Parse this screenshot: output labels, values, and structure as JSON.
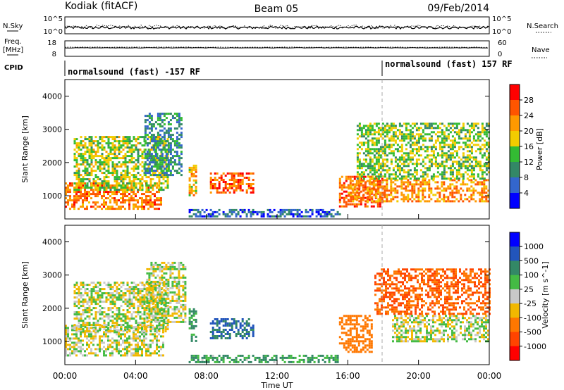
{
  "header": {
    "station": "Kodiak (fitACF)",
    "beam": "Beam 05",
    "date": "09/Feb/2014"
  },
  "status_panel": {
    "nsky_label": "N.Sky",
    "nsky_ticks": [
      "10^5",
      "10^0"
    ],
    "nsearch_label": "N.Search",
    "nsearch_ticks": [
      "10^5",
      "10^0"
    ],
    "freq_label_1": "Freq.",
    "freq_label_2": "[MHz]",
    "freq_ticks": [
      "18",
      "8"
    ],
    "nave_label": "Nave",
    "nave_ticks": [
      "60",
      "0"
    ],
    "cpid_label": "CPID",
    "cpid_segments": [
      {
        "text": "normalsound (fast) -157 RF",
        "start_hour": 0
      },
      {
        "text": "normalsound (fast) 157 RF",
        "start_hour": 18
      }
    ]
  },
  "chart_data": [
    {
      "type": "heatmap",
      "title": "",
      "xlabel": "Time UT",
      "ylabel": "Slant Range [km]",
      "x_ticks": [
        "00:00",
        "04:00",
        "08:00",
        "12:00",
        "16:00",
        "20:00",
        "00:00"
      ],
      "xlim_hours": [
        0,
        24
      ],
      "ylim": [
        300,
        4500
      ],
      "y_ticks": [
        1000,
        2000,
        3000,
        4000
      ],
      "colorbar": {
        "label": "Power [dB]",
        "ticks": [
          "28",
          "24",
          "20",
          "16",
          "12",
          "8",
          "4"
        ],
        "colors": [
          "#ff0000",
          "#ff5500",
          "#ff9900",
          "#f2cc00",
          "#33bb33",
          "#338866",
          "#3366cc",
          "#0000ff"
        ]
      },
      "echo_regions": [
        {
          "t0": 0.0,
          "t1": 5.4,
          "r0": 600,
          "r1": 1400,
          "level": 26
        },
        {
          "t0": 0.5,
          "t1": 5.8,
          "r0": 1200,
          "r1": 2800,
          "level": 18
        },
        {
          "t0": 4.5,
          "t1": 6.6,
          "r0": 1600,
          "r1": 3500,
          "level": 12
        },
        {
          "t0": 7.0,
          "t1": 7.4,
          "r0": 1000,
          "r1": 2000,
          "level": 22
        },
        {
          "t0": 7.0,
          "t1": 15.6,
          "r0": 350,
          "r1": 600,
          "level": 8
        },
        {
          "t0": 8.2,
          "t1": 10.6,
          "r0": 1100,
          "r1": 1700,
          "level": 28
        },
        {
          "t0": 15.5,
          "t1": 18.0,
          "r0": 700,
          "r1": 1600,
          "level": 28
        },
        {
          "t0": 16.0,
          "t1": 24.0,
          "r0": 800,
          "r1": 1500,
          "level": 25
        },
        {
          "t0": 16.5,
          "t1": 24.0,
          "r0": 1500,
          "r1": 3200,
          "level": 17
        }
      ]
    },
    {
      "type": "heatmap",
      "title": "",
      "xlabel": "Time UT",
      "ylabel": "Slant Range [km]",
      "x_ticks": [
        "00:00",
        "04:00",
        "08:00",
        "12:00",
        "16:00",
        "20:00",
        "00:00"
      ],
      "xlim_hours": [
        0,
        24
      ],
      "ylim": [
        300,
        4500
      ],
      "y_ticks": [
        1000,
        2000,
        3000,
        4000
      ],
      "colorbar": {
        "label": "Velocity [m s^-1]",
        "ticks": [
          "1000",
          "500",
          "100",
          "25",
          "-25",
          "-100",
          "-500",
          "-1000"
        ],
        "colors": [
          "#0000ff",
          "#2255bb",
          "#338866",
          "#44bb44",
          "#c8c8c8",
          "#f2b800",
          "#ff7700",
          "#ff4400",
          "#ff0000"
        ]
      },
      "echo_regions": [
        {
          "t0": 0.0,
          "t1": 5.6,
          "r0": 600,
          "r1": 1500,
          "vel": 0
        },
        {
          "t0": 0.5,
          "t1": 5.8,
          "r0": 1300,
          "r1": 2800,
          "vel": 0
        },
        {
          "t0": 4.6,
          "t1": 6.8,
          "r0": 1600,
          "r1": 3400,
          "vel": 0
        },
        {
          "t0": 7.0,
          "t1": 7.4,
          "r0": 1000,
          "r1": 2000,
          "vel": 150
        },
        {
          "t0": 7.0,
          "t1": 15.6,
          "r0": 350,
          "r1": 600,
          "vel": 120
        },
        {
          "t0": 8.2,
          "t1": 10.6,
          "r0": 1100,
          "r1": 1700,
          "vel": 300
        },
        {
          "t0": 15.5,
          "t1": 17.4,
          "r0": 700,
          "r1": 1800,
          "vel": -200
        },
        {
          "t0": 18.5,
          "t1": 24.0,
          "r0": 1000,
          "r1": 1800,
          "vel": 0
        },
        {
          "t0": 17.5,
          "t1": 24.0,
          "r0": 1800,
          "r1": 3200,
          "vel": -300
        }
      ]
    }
  ],
  "status_series": {
    "nsky_level": 0.15,
    "freq_level": 0.25,
    "nave_level": 0.6
  }
}
